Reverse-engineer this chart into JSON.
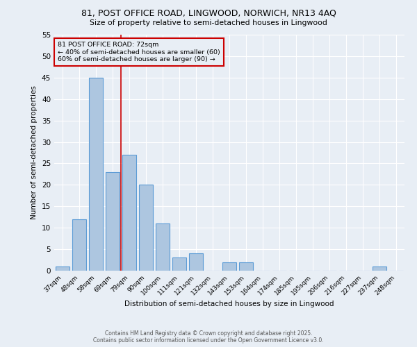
{
  "title1": "81, POST OFFICE ROAD, LINGWOOD, NORWICH, NR13 4AQ",
  "title2": "Size of property relative to semi-detached houses in Lingwood",
  "xlabel": "Distribution of semi-detached houses by size in Lingwood",
  "ylabel": "Number of semi-detached properties",
  "categories": [
    "37sqm",
    "48sqm",
    "58sqm",
    "69sqm",
    "79sqm",
    "90sqm",
    "100sqm",
    "111sqm",
    "121sqm",
    "132sqm",
    "143sqm",
    "153sqm",
    "164sqm",
    "174sqm",
    "185sqm",
    "195sqm",
    "206sqm",
    "216sqm",
    "227sqm",
    "237sqm",
    "248sqm"
  ],
  "values": [
    1,
    12,
    45,
    23,
    27,
    20,
    11,
    3,
    4,
    0,
    2,
    2,
    0,
    0,
    0,
    0,
    0,
    0,
    0,
    1,
    0
  ],
  "bar_color": "#adc6e0",
  "bar_edge_color": "#5b9bd5",
  "vline_x": 3.5,
  "vline_color": "#cc0000",
  "annotation_title": "81 POST OFFICE ROAD: 72sqm",
  "annotation_line1": "← 40% of semi-detached houses are smaller (60)",
  "annotation_line2": "60% of semi-detached houses are larger (90) →",
  "annotation_box_color": "#cc0000",
  "footer1": "Contains HM Land Registry data © Crown copyright and database right 2025.",
  "footer2": "Contains public sector information licensed under the Open Government Licence v3.0.",
  "ylim": [
    0,
    55
  ],
  "yticks": [
    0,
    5,
    10,
    15,
    20,
    25,
    30,
    35,
    40,
    45,
    50,
    55
  ],
  "background_color": "#e8eef5",
  "grid_color": "#ffffff"
}
